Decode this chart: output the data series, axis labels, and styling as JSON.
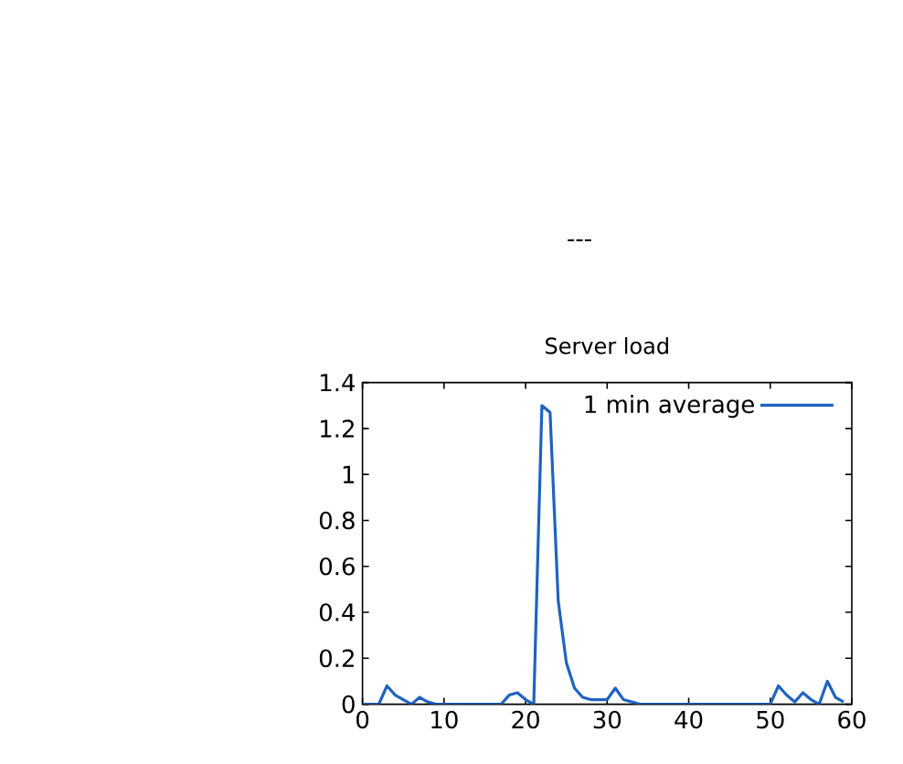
{
  "chart_data": {
    "type": "line",
    "title": "Server load",
    "annotations": [
      "---"
    ],
    "x": [
      0,
      1,
      2,
      3,
      4,
      5,
      6,
      7,
      8,
      9,
      10,
      11,
      12,
      13,
      14,
      15,
      16,
      17,
      18,
      19,
      20,
      21,
      22,
      23,
      24,
      25,
      26,
      27,
      28,
      29,
      30,
      31,
      32,
      33,
      34,
      35,
      36,
      37,
      38,
      39,
      40,
      41,
      42,
      43,
      44,
      45,
      46,
      47,
      48,
      49,
      50,
      51,
      52,
      53,
      54,
      55,
      56,
      57,
      58,
      59
    ],
    "series": [
      {
        "name": "1 min average",
        "color": "#1f63c0",
        "values": [
          0,
          0,
          0,
          0.08,
          0.04,
          0.02,
          0,
          0.03,
          0.01,
          0,
          0,
          0,
          0,
          0,
          0,
          0,
          0,
          0,
          0.04,
          0.05,
          0.02,
          0,
          1.3,
          1.27,
          0.45,
          0.18,
          0.07,
          0.03,
          0.02,
          0.02,
          0.02,
          0.07,
          0.02,
          0.01,
          0,
          0,
          0,
          0,
          0,
          0,
          0,
          0,
          0,
          0,
          0,
          0,
          0,
          0,
          0,
          0,
          0,
          0.08,
          0.04,
          0.01,
          0.05,
          0.02,
          0,
          0.1,
          0.03,
          0.01
        ]
      }
    ],
    "xlim": [
      0,
      60
    ],
    "ylim": [
      0,
      1.4
    ],
    "xticks": [
      0,
      10,
      20,
      30,
      40,
      50,
      60
    ],
    "yticks": [
      0,
      0.2,
      0.4,
      0.6,
      0.8,
      1,
      1.2,
      1.4
    ],
    "grid": false,
    "legend": "top right",
    "marker": "none",
    "line_style": "solid"
  }
}
